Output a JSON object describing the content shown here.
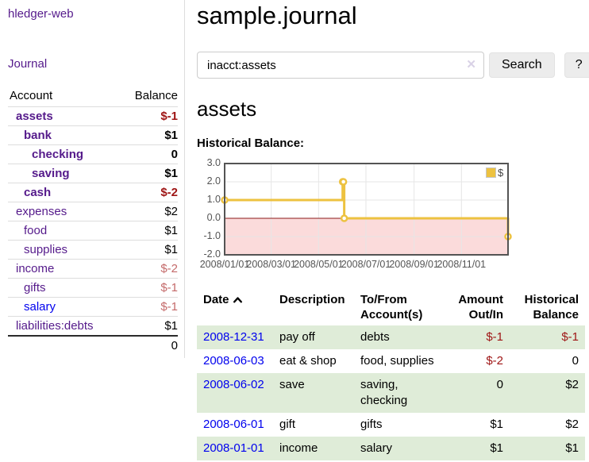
{
  "app": {
    "title": "hledger-web"
  },
  "sidebar": {
    "nav_journal": "Journal",
    "table": {
      "headers": {
        "account": "Account",
        "balance": "Balance"
      },
      "accounts": [
        {
          "name": "assets",
          "balance": "$-1",
          "level": 1,
          "bold": true,
          "balance_tone": "negative"
        },
        {
          "name": "bank",
          "balance": "$1",
          "level": 2,
          "bold": true,
          "balance_tone": "normal"
        },
        {
          "name": "checking",
          "balance": "0",
          "level": 3,
          "bold": true,
          "balance_tone": "normal"
        },
        {
          "name": "saving",
          "balance": "$1",
          "level": 3,
          "bold": true,
          "balance_tone": "normal"
        },
        {
          "name": "cash",
          "balance": "$-2",
          "level": 2,
          "bold": true,
          "balance_tone": "negative"
        },
        {
          "name": "expenses",
          "balance": "$2",
          "level": 1,
          "bold": false,
          "balance_tone": "normal"
        },
        {
          "name": "food",
          "balance": "$1",
          "level": 2,
          "bold": false,
          "balance_tone": "normal"
        },
        {
          "name": "supplies",
          "balance": "$1",
          "level": 2,
          "bold": false,
          "balance_tone": "normal"
        },
        {
          "name": "income",
          "balance": "$-2",
          "level": 1,
          "bold": false,
          "balance_tone": "negative-muted"
        },
        {
          "name": "gifts",
          "balance": "$-1",
          "level": 2,
          "bold": false,
          "balance_tone": "negative-muted"
        },
        {
          "name": "salary",
          "balance": "$-1",
          "level": 2,
          "bold": false,
          "balance_tone": "negative-muted",
          "unvisited": true
        },
        {
          "name": "liabilities:debts",
          "balance": "$1",
          "level": 1,
          "bold": false,
          "balance_tone": "normal"
        }
      ],
      "total": "0"
    }
  },
  "header": {
    "title": "sample.journal"
  },
  "search": {
    "value": "inacct:assets",
    "clear_icon": "✕",
    "button_label": "Search",
    "help_label": "?"
  },
  "account_page": {
    "heading": "assets",
    "chart_label": "Historical Balance:"
  },
  "chart_data": {
    "type": "line",
    "title": "Historical Balance",
    "style": "step",
    "series": [
      {
        "name": "$",
        "color": "#edc240",
        "points": [
          {
            "date": "2008-01-01",
            "day": 0,
            "value": 1
          },
          {
            "date": "2008-06-01",
            "day": 152,
            "value": 2
          },
          {
            "date": "2008-06-02",
            "day": 153,
            "value": 2
          },
          {
            "date": "2008-06-03",
            "day": 154,
            "value": 0
          },
          {
            "date": "2008-12-31",
            "day": 365,
            "value": -1
          }
        ]
      }
    ],
    "x_ticks": [
      {
        "label": "2008/01/01",
        "day": 0
      },
      {
        "label": "2008/03/01",
        "day": 60
      },
      {
        "label": "2008/05/01",
        "day": 121
      },
      {
        "label": "2008/07/01",
        "day": 182
      },
      {
        "label": "2008/09/01",
        "day": 244
      },
      {
        "label": "2008/11/01",
        "day": 305
      }
    ],
    "y_ticks": [
      "3.0",
      "2.0",
      "1.0",
      "0.0",
      "-1.0",
      "-2.0"
    ],
    "ylim": [
      -2,
      3
    ],
    "xlim_days": [
      0,
      365
    ],
    "grid": true,
    "legend_position": "top-right",
    "negative_region_color": "#fbdbdb",
    "zero_line_color": "#8b1a1a",
    "grid_color": "#e6e6e6",
    "border_color": "#545454"
  },
  "register": {
    "headers": {
      "date": "Date",
      "description": "Description",
      "accounts": "To/From Account(s)",
      "amount": "Amount Out/In",
      "balance": "Historical Balance"
    },
    "sort": {
      "column": "date",
      "direction": "ascending"
    },
    "rows": [
      {
        "date": "2008-12-31",
        "description": "pay off",
        "accounts": "debts",
        "amount": "$-1",
        "balance": "$-1",
        "amount_negative": true,
        "balance_negative": true,
        "highlight": true
      },
      {
        "date": "2008-06-03",
        "description": "eat & shop",
        "accounts": "food, supplies",
        "amount": "$-2",
        "balance": "0",
        "amount_negative": true,
        "balance_negative": false,
        "highlight": false
      },
      {
        "date": "2008-06-02",
        "description": "save",
        "accounts": "saving, checking",
        "amount": "0",
        "balance": "$2",
        "amount_negative": false,
        "balance_negative": false,
        "highlight": true
      },
      {
        "date": "2008-06-01",
        "description": "gift",
        "accounts": "gifts",
        "amount": "$1",
        "balance": "$2",
        "amount_negative": false,
        "balance_negative": false,
        "highlight": false
      },
      {
        "date": "2008-01-01",
        "description": "income",
        "accounts": "salary",
        "amount": "$1",
        "balance": "$1",
        "amount_negative": false,
        "balance_negative": false,
        "highlight": true
      }
    ]
  },
  "colors": {
    "link_purple": "#551a8b",
    "link_blue": "#0000ee",
    "negative": "#9e1414",
    "negative_muted": "#c46a6a",
    "row_highlight_green": "#dfecd8",
    "series_yellow": "#edc240"
  }
}
